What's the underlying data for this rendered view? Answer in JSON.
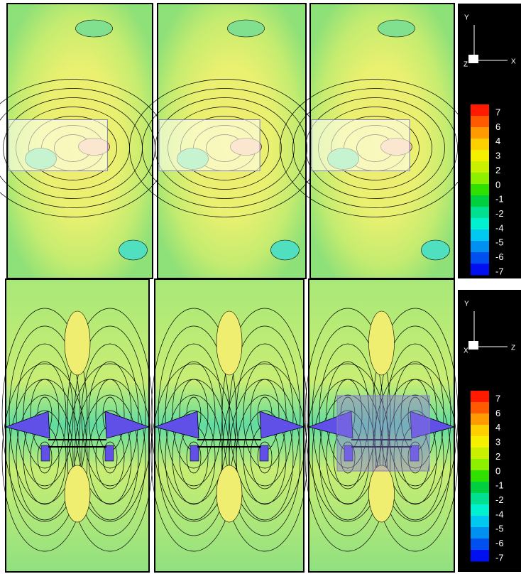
{
  "legends": [
    {
      "axis_up": "Y",
      "axis_right": "X",
      "axis_out": "Z",
      "levels": [
        7,
        6,
        4,
        3,
        2,
        0,
        -1,
        -2,
        -4,
        -5,
        -6,
        -7
      ]
    },
    {
      "axis_up": "Y",
      "axis_right": "Z",
      "axis_out": "X",
      "levels": [
        7,
        6,
        4,
        3,
        2,
        0,
        -1,
        -2,
        -4,
        -5,
        -6,
        -7
      ]
    }
  ],
  "colorbar_colors": [
    "#ff1a00",
    "#ff5a00",
    "#ff9a00",
    "#ffd000",
    "#f4f000",
    "#c8f000",
    "#8cf000",
    "#30e000",
    "#00d040",
    "#00e090",
    "#00f0d0",
    "#00c8f0",
    "#0090f0",
    "#0050f0",
    "#0010f0"
  ]
}
